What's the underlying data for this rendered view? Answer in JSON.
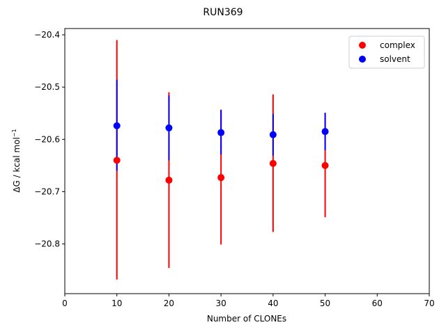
{
  "chart_data": {
    "type": "scatter",
    "title": "RUN369",
    "xlabel": "Number of CLONEs",
    "ylabel_main": "ΔG / kcal mol",
    "ylabel_sup": "−1",
    "xlim": [
      0,
      70
    ],
    "ylim": [
      -20.895,
      -20.388
    ],
    "xticks": [
      0,
      10,
      20,
      30,
      40,
      50,
      60,
      70
    ],
    "xtick_labels": [
      "0",
      "10",
      "20",
      "30",
      "40",
      "50",
      "60",
      "70"
    ],
    "yticks": [
      -20.4,
      -20.5,
      -20.6,
      -20.7,
      -20.8
    ],
    "ytick_labels": [
      "−20.4",
      "−20.5",
      "−20.6",
      "−20.7",
      "−20.8"
    ],
    "grid": false,
    "legend_position": "top-right",
    "series": [
      {
        "name": "complex",
        "color": "#ff0000",
        "x": [
          10,
          20,
          30,
          40,
          50
        ],
        "y": [
          -20.64,
          -20.678,
          -20.673,
          -20.646,
          -20.65
        ],
        "yerr_low": [
          -20.868,
          -20.846,
          -20.801,
          -20.777,
          -20.749
        ],
        "yerr_high": [
          -20.41,
          -20.51,
          -20.543,
          -20.514,
          -20.55
        ]
      },
      {
        "name": "solvent",
        "color": "#0000ff",
        "x": [
          10,
          20,
          30,
          40,
          50
        ],
        "y": [
          -20.574,
          -20.578,
          -20.587,
          -20.591,
          -20.585
        ],
        "yerr_low": [
          -20.66,
          -20.64,
          -20.629,
          -20.631,
          -20.621
        ],
        "yerr_high": [
          -20.486,
          -20.516,
          -20.544,
          -20.551,
          -20.549
        ]
      }
    ]
  }
}
